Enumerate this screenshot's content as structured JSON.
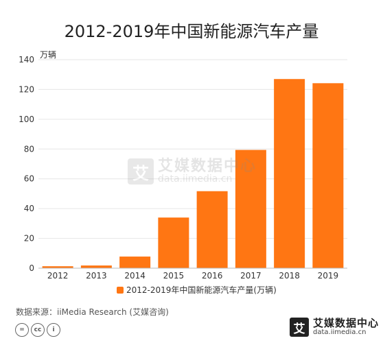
{
  "chart_data": {
    "type": "bar",
    "title": "2012-2019年中国新能源汽车产量",
    "unit_label": "万辆",
    "categories": [
      "2012",
      "2013",
      "2014",
      "2015",
      "2016",
      "2017",
      "2018",
      "2019"
    ],
    "series": [
      {
        "name": "2012-2019年中国新能源汽车产量(万辆)",
        "values": [
          1.3,
          1.8,
          7.8,
          34.0,
          51.7,
          79.4,
          127.0,
          124.2
        ],
        "color": "#FF7613"
      }
    ],
    "ylim": [
      0,
      140
    ],
    "yticks": [
      0,
      20,
      40,
      60,
      80,
      100,
      120,
      140
    ],
    "grid": true,
    "legend_position": "bottom"
  },
  "footer": {
    "source": "数据来源：iiMedia Research (艾媒咨询)",
    "brand_logo_char": "艾",
    "brand_name": "艾媒数据中心",
    "brand_url": "data.iimedia.cn",
    "cc_icons": [
      "=",
      "cc",
      "i"
    ]
  },
  "watermark": {
    "logo_char": "艾",
    "name": "艾媒数据中心",
    "url": "data.iimedia.cn"
  }
}
